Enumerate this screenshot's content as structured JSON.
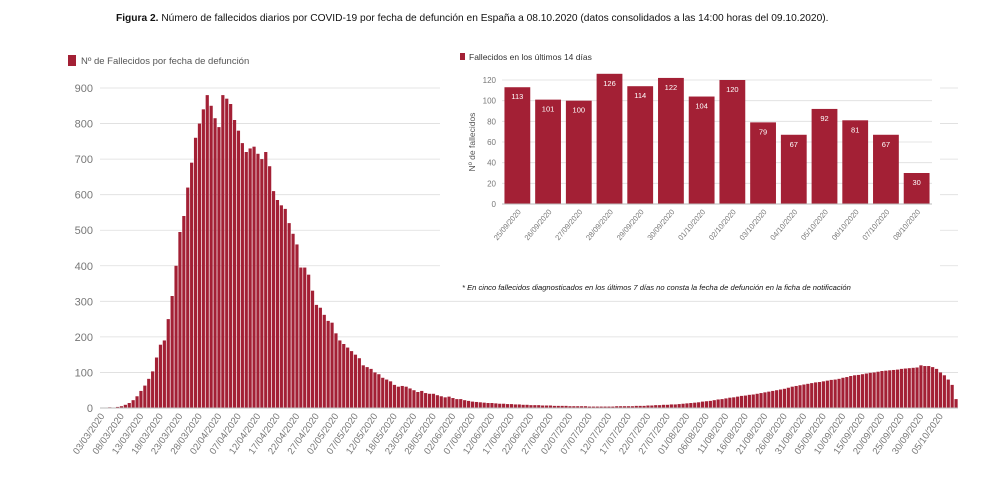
{
  "figure": {
    "caption_bold": "Figura 2.",
    "caption_text": "Número de fallecidos diarios por COVID-19 por fecha de defunción en España a 08.10.2020 (datos consolidados a las 14:00 horas del 09.10.2020).",
    "footnote": "* En cinco fallecidos diagnosticados en los últimos 7 días no consta la fecha de defunción en la ficha de notificación"
  },
  "colors": {
    "bar": "#a32035",
    "grid": "#dddddd",
    "axis_text": "#777777"
  },
  "chart_data": [
    {
      "type": "bar",
      "legend": "Nº de Fallecidos por fecha de defunción",
      "legend_position": "top-left",
      "ylim": [
        0,
        900
      ],
      "yticks": [
        0,
        100,
        200,
        300,
        400,
        500,
        600,
        700,
        800,
        900
      ],
      "grid": true,
      "xlabels": [
        "03/03/2020",
        "08/03/2020",
        "13/03/2020",
        "18/03/2020",
        "23/03/2020",
        "28/03/2020",
        "02/04/2020",
        "07/04/2020",
        "12/04/2020",
        "17/04/2020",
        "22/04/2020",
        "27/04/2020",
        "02/05/2020",
        "07/05/2020",
        "12/05/2020",
        "18/05/2020",
        "23/05/2020",
        "28/05/2020",
        "02/06/2020",
        "07/06/2020",
        "12/06/2020",
        "17/06/2020",
        "22/06/2020",
        "27/06/2020",
        "02/07/2020",
        "07/07/2020",
        "12/07/2020",
        "17/07/2020",
        "22/07/2020",
        "27/07/2020",
        "01/08/2020",
        "06/08/2020",
        "11/08/2020",
        "16/08/2020",
        "21/08/2020",
        "26/08/2020",
        "31/08/2020",
        "05/09/2020",
        "10/09/2020",
        "15/09/2020",
        "20/09/2020",
        "25/09/2020",
        "30/09/2020",
        "05/10/2020"
      ],
      "values": [
        1,
        0,
        2,
        1,
        3,
        5,
        9,
        14,
        22,
        33,
        48,
        63,
        82,
        103,
        142,
        178,
        190,
        250,
        315,
        400,
        495,
        540,
        620,
        690,
        760,
        800,
        840,
        880,
        850,
        815,
        790,
        880,
        870,
        855,
        810,
        780,
        745,
        720,
        730,
        735,
        715,
        700,
        720,
        680,
        610,
        585,
        570,
        560,
        520,
        490,
        460,
        395,
        395,
        375,
        330,
        290,
        282,
        262,
        245,
        240,
        210,
        190,
        180,
        170,
        160,
        150,
        140,
        120,
        115,
        110,
        100,
        95,
        85,
        80,
        75,
        65,
        60,
        62,
        60,
        55,
        50,
        45,
        48,
        42,
        40,
        40,
        36,
        33,
        30,
        32,
        28,
        25,
        25,
        22,
        20,
        18,
        17,
        16,
        15,
        14,
        14,
        13,
        12,
        12,
        11,
        11,
        10,
        10,
        9,
        9,
        8,
        8,
        8,
        7,
        7,
        7,
        6,
        6,
        6,
        6,
        5,
        5,
        5,
        5,
        5,
        4,
        4,
        4,
        4,
        4,
        4,
        4,
        5,
        5,
        5,
        5,
        5,
        6,
        6,
        6,
        7,
        7,
        8,
        8,
        9,
        9,
        10,
        10,
        11,
        12,
        13,
        14,
        15,
        16,
        18,
        19,
        20,
        22,
        24,
        25,
        27,
        29,
        30,
        32,
        34,
        35,
        37,
        38,
        40,
        42,
        44,
        46,
        48,
        50,
        52,
        54,
        57,
        60,
        62,
        64,
        66,
        68,
        70,
        72,
        73,
        75,
        77,
        79,
        80,
        82,
        85,
        87,
        90,
        92,
        93,
        95,
        97,
        99,
        100,
        102,
        104,
        105,
        106,
        107,
        108,
        110,
        111,
        112,
        113,
        114,
        120,
        118,
        118,
        115,
        110,
        100,
        92,
        80,
        65,
        25
      ]
    },
    {
      "type": "bar",
      "legend": "Fallecidos en los últimos 14 días",
      "legend_position": "top-left",
      "ylabel": "Nº de fallecidos",
      "ylim": [
        0,
        120
      ],
      "yticks": [
        0,
        20,
        40,
        60,
        80,
        100,
        120
      ],
      "grid": true,
      "categories": [
        "25/09/2020",
        "26/09/2020",
        "27/09/2020",
        "28/09/2020",
        "29/09/2020",
        "30/09/2020",
        "01/10/2020",
        "02/10/2020",
        "03/10/2020",
        "04/10/2020",
        "05/10/2020",
        "06/10/2020",
        "07/10/2020",
        "08/10/2020"
      ],
      "values": [
        113,
        101,
        100,
        126,
        114,
        122,
        104,
        120,
        79,
        67,
        92,
        81,
        67,
        30
      ]
    }
  ]
}
